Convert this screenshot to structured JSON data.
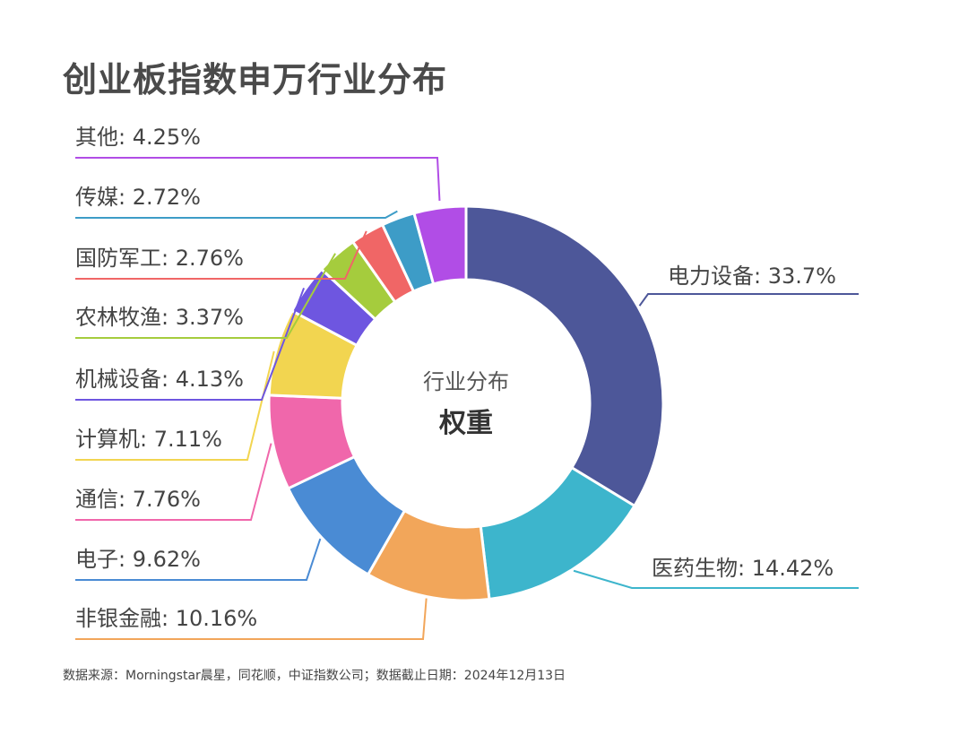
{
  "page": {
    "title": "创业板指数申万行业分布",
    "source": "数据来源：Morningstar晨星，同花顺，中证指数公司；数据截止日期：2024年12月13日"
  },
  "chart_data": {
    "type": "pie",
    "style": "donut",
    "center_label": {
      "line1": "行业分布",
      "line2": "权重"
    },
    "slices": [
      {
        "name": "电力设备",
        "value": 33.7,
        "label": "电力设备: 33.7%",
        "color": "#4d5799"
      },
      {
        "name": "医药生物",
        "value": 14.42,
        "label": "医药生物: 14.42%",
        "color": "#3db5cc"
      },
      {
        "name": "非银金融",
        "value": 10.16,
        "label": "非银金融: 10.16%",
        "color": "#f2a65a"
      },
      {
        "name": "电子",
        "value": 9.62,
        "label": "电子: 9.62%",
        "color": "#4a8bd4"
      },
      {
        "name": "通信",
        "value": 7.76,
        "label": "通信: 7.76%",
        "color": "#f067ab"
      },
      {
        "name": "计算机",
        "value": 7.11,
        "label": "计算机: 7.11%",
        "color": "#f2d550"
      },
      {
        "name": "机械设备",
        "value": 4.13,
        "label": "机械设备: 4.13%",
        "color": "#6e56e0"
      },
      {
        "name": "农林牧渔",
        "value": 3.37,
        "label": "农林牧渔: 3.37%",
        "color": "#a5cc3d"
      },
      {
        "name": "国防军工",
        "value": 2.76,
        "label": "国防军工: 2.76%",
        "color": "#f06666"
      },
      {
        "name": "传媒",
        "value": 2.72,
        "label": "传媒: 2.72%",
        "color": "#3d9cc7"
      },
      {
        "name": "其他",
        "value": 4.25,
        "label": "其他: 4.25%",
        "color": "#b14de6"
      }
    ]
  }
}
